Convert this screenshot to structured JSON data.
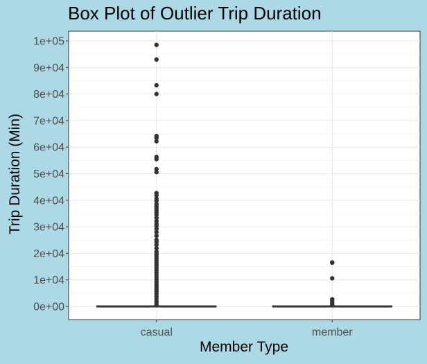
{
  "chart_data": {
    "type": "box",
    "title": "Box Plot of Outlier Trip Duration",
    "xlabel": "Member Type",
    "ylabel": "Trip Duration (Min)",
    "categories": [
      "casual",
      "member"
    ],
    "ylim": [
      -5000,
      104000
    ],
    "yticks": [
      0,
      10000,
      20000,
      30000,
      40000,
      50000,
      60000,
      70000,
      80000,
      90000,
      100000
    ],
    "ytick_labels": [
      "0e+00",
      "1e+04",
      "2e+04",
      "3e+04",
      "4e+04",
      "5e+04",
      "6e+04",
      "7e+04",
      "8e+04",
      "9e+04",
      "1e+05"
    ],
    "grid": true,
    "series": [
      {
        "category": "casual",
        "box": {
          "min": 0,
          "q1": 0,
          "median": 0,
          "q3": 0,
          "max": 0
        },
        "outliers": [
          98500,
          93000,
          83300,
          80000,
          64200,
          63500,
          62200,
          56300,
          55500,
          51700,
          50600,
          42700,
          41800,
          40600,
          39800,
          38600,
          37700,
          37000,
          36200,
          35300,
          34500,
          33400,
          32200,
          31100,
          30300,
          29200,
          28000,
          26600,
          25100,
          24300,
          23200,
          21900,
          20600,
          19700,
          19000,
          18200,
          17300,
          16400,
          15500,
          14600,
          13700,
          12800,
          11900,
          11000,
          10100,
          9200,
          8300,
          7400,
          6500,
          5600,
          4700,
          3800,
          2900,
          2000,
          1200,
          500
        ]
      },
      {
        "category": "member",
        "box": {
          "min": 0,
          "q1": 0,
          "median": 0,
          "q3": 0,
          "max": 0
        },
        "outliers": [
          16600,
          16500,
          10600,
          2700,
          1900,
          1200,
          600
        ]
      }
    ]
  }
}
